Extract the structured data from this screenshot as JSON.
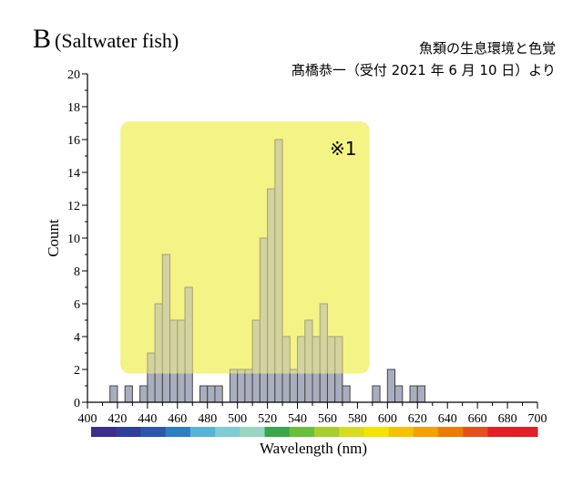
{
  "panel": {
    "letter": "B",
    "subtitle": "(Saltwater fish)",
    "note": "※1"
  },
  "source": {
    "line1": "魚類の生息環境と色覚",
    "line2": "髙橋恭一（受付 2021 年 6 月 10 日）より"
  },
  "chart_data": {
    "type": "bar",
    "xlabel": "Wavelength (nm)",
    "ylabel": "Count",
    "xlim": [
      400,
      700
    ],
    "ylim": [
      0,
      20
    ],
    "x_ticks": [
      400,
      420,
      440,
      460,
      480,
      500,
      520,
      540,
      560,
      580,
      600,
      620,
      640,
      660,
      680,
      700
    ],
    "y_ticks": [
      0,
      2,
      4,
      6,
      8,
      10,
      12,
      14,
      16,
      18,
      20
    ],
    "bin_width": 5,
    "bin_starts": [
      415,
      425,
      435,
      440,
      445,
      450,
      455,
      460,
      465,
      470,
      475,
      480,
      485,
      490,
      495,
      500,
      505,
      510,
      515,
      520,
      525,
      530,
      535,
      540,
      545,
      550,
      555,
      560,
      565,
      570,
      575,
      580,
      585,
      590,
      595,
      600,
      605,
      610,
      615,
      620
    ],
    "counts": [
      1,
      1,
      1,
      3,
      6,
      9,
      5,
      5,
      7,
      0,
      1,
      1,
      1,
      0,
      2,
      2,
      2,
      5,
      10,
      13,
      16,
      4,
      2,
      4,
      5,
      4,
      6,
      4,
      4,
      1,
      0,
      0,
      0,
      1,
      0,
      2,
      1,
      0,
      1,
      1
    ],
    "highlight": {
      "label": "※1",
      "x_range": [
        422,
        588
      ],
      "y_range": [
        1.75,
        17.1
      ],
      "color": "#f4f386"
    },
    "bar_color": "#a9aebf",
    "spectrum_colors": [
      "#3a2f8a",
      "#2d3f9a",
      "#2a56b0",
      "#2c7fc0",
      "#56b4d8",
      "#7fcbd6",
      "#9ad6c4",
      "#3aa64a",
      "#6abf3a",
      "#a6cf2e",
      "#d9dc1e",
      "#f4e300",
      "#f7c300",
      "#f4a000",
      "#ee7a00",
      "#e84e1b",
      "#e31e24",
      "#e21e26"
    ],
    "grid": false,
    "legend": "none"
  }
}
